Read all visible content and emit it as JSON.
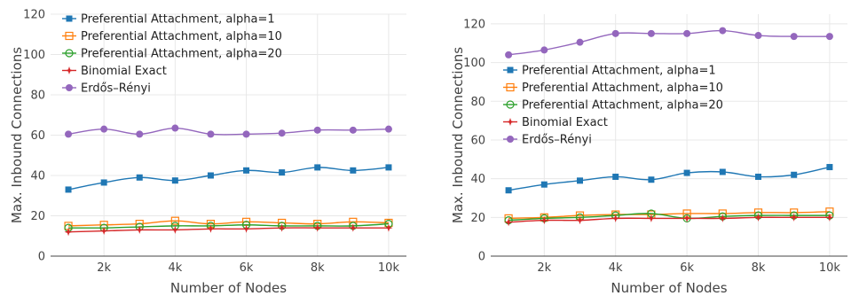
{
  "chart_data": [
    {
      "type": "line",
      "xlabel": "Number of Nodes",
      "ylabel": "Max. Inbound Connections",
      "x": [
        1000,
        2000,
        3000,
        4000,
        5000,
        6000,
        7000,
        8000,
        9000,
        10000
      ],
      "x_ticks": [
        2000,
        4000,
        6000,
        8000,
        10000
      ],
      "x_tick_labels": [
        "2k",
        "4k",
        "6k",
        "8k",
        "10k"
      ],
      "xlim": [
        500,
        10500
      ],
      "ylim": [
        0,
        120
      ],
      "y_ticks": [
        0,
        20,
        40,
        60,
        80,
        100,
        120
      ],
      "y_tick_labels": [
        "0",
        "20",
        "40",
        "60",
        "80",
        "100",
        "120"
      ],
      "grid": true,
      "legend_position": "top-left",
      "series": [
        {
          "name": "Preferential Attachment, alpha=1",
          "color": "#1f77b4",
          "marker": "square",
          "values": [
            33,
            36.5,
            39,
            37.5,
            40,
            42.5,
            41.5,
            44,
            42.5,
            44
          ]
        },
        {
          "name": "Preferential Attachment, alpha=10",
          "color": "#ff7f0e",
          "marker": "square-open",
          "values": [
            15,
            15.5,
            16,
            17.5,
            16,
            17,
            16.5,
            16,
            17,
            16.5
          ]
        },
        {
          "name": "Preferential Attachment, alpha=20",
          "color": "#2ca02c",
          "marker": "circle-open",
          "values": [
            14,
            14,
            14.5,
            15,
            15,
            15.5,
            15,
            15,
            15,
            16
          ]
        },
        {
          "name": "Binomial Exact",
          "color": "#d62728",
          "marker": "star",
          "values": [
            12,
            12.5,
            13,
            13,
            13.5,
            13.5,
            14,
            14,
            14,
            14
          ]
        },
        {
          "name": "Erdős–Rényi",
          "color": "#9467bd",
          "marker": "circle",
          "values": [
            60.5,
            63,
            60.5,
            63.5,
            60.5,
            60.5,
            61,
            62.5,
            62.5,
            63
          ]
        }
      ]
    },
    {
      "type": "line",
      "xlabel": "Number of Nodes",
      "ylabel": "Max. Inbound Connections",
      "x": [
        1000,
        2000,
        3000,
        4000,
        5000,
        6000,
        7000,
        8000,
        9000,
        10000
      ],
      "x_ticks": [
        2000,
        4000,
        6000,
        8000,
        10000
      ],
      "x_tick_labels": [
        "2k",
        "4k",
        "6k",
        "8k",
        "10k"
      ],
      "xlim": [
        500,
        10500
      ],
      "ylim": [
        0,
        125
      ],
      "y_ticks": [
        0,
        20,
        40,
        60,
        80,
        100,
        120
      ],
      "y_tick_labels": [
        "0",
        "20",
        "40",
        "60",
        "80",
        "100",
        "120"
      ],
      "grid": true,
      "legend_position": "center-left",
      "series": [
        {
          "name": "Preferential Attachment, alpha=1",
          "color": "#1f77b4",
          "marker": "square",
          "values": [
            34,
            37,
            39,
            41,
            39.5,
            43,
            43.5,
            41,
            42,
            46
          ]
        },
        {
          "name": "Preferential Attachment, alpha=10",
          "color": "#ff7f0e",
          "marker": "square-open",
          "values": [
            19.5,
            20,
            21,
            21.5,
            21.5,
            22,
            22,
            22.5,
            22.5,
            23
          ]
        },
        {
          "name": "Preferential Attachment, alpha=20",
          "color": "#2ca02c",
          "marker": "circle-open",
          "values": [
            18.5,
            19.5,
            20,
            21,
            22,
            19.5,
            20.5,
            21,
            21,
            21
          ]
        },
        {
          "name": "Binomial Exact",
          "color": "#d62728",
          "marker": "star",
          "values": [
            17.5,
            18.5,
            18.5,
            19.5,
            19.5,
            19.5,
            19.5,
            20,
            20,
            20
          ]
        },
        {
          "name": "Erdős–Rényi",
          "color": "#9467bd",
          "marker": "circle",
          "values": [
            104,
            106.5,
            110.5,
            115,
            115,
            115,
            116.5,
            114,
            113.5,
            113.5
          ]
        }
      ]
    }
  ]
}
